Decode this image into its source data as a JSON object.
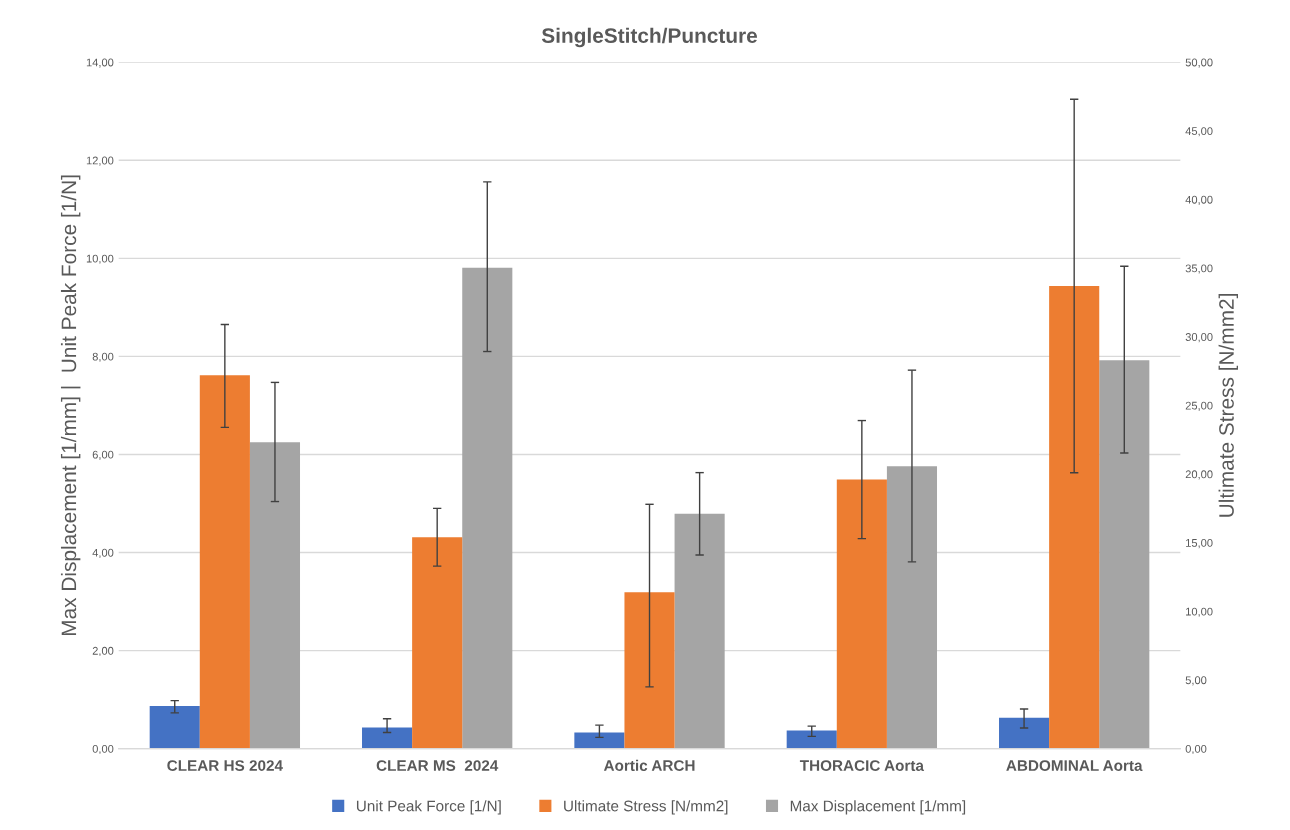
{
  "chart_data": {
    "type": "bar",
    "title": "SingleStitch/Puncture",
    "categories": [
      "CLEAR HS 2024",
      "CLEAR MS  2024",
      "Aortic ARCH",
      "THORACIC Aorta",
      "ABDOMINAL Aorta"
    ],
    "ylabel": "Max Displacement [1/mm] |  Unit Peak Force [1/N]",
    "y2label": "Ultimate Stress [N/mm2]",
    "ylim": [
      0,
      14
    ],
    "yticks": [
      {
        "value": 0,
        "label": "0,00"
      },
      {
        "value": 2,
        "label": "2,00"
      },
      {
        "value": 4,
        "label": "4,00"
      },
      {
        "value": 6,
        "label": "6,00"
      },
      {
        "value": 8,
        "label": "8,00"
      },
      {
        "value": 10,
        "label": "10,00"
      },
      {
        "value": 12,
        "label": "12,00"
      },
      {
        "value": 14,
        "label": "14,00"
      }
    ],
    "y2lim": [
      0,
      50
    ],
    "y2ticks": [
      {
        "value": 0,
        "label": "0,00"
      },
      {
        "value": 5,
        "label": "5,00"
      },
      {
        "value": 10,
        "label": "10,00"
      },
      {
        "value": 15,
        "label": "15,00"
      },
      {
        "value": 20,
        "label": "20,00"
      },
      {
        "value": 25,
        "label": "25,00"
      },
      {
        "value": 30,
        "label": "30,00"
      },
      {
        "value": 35,
        "label": "35,00"
      },
      {
        "value": 40,
        "label": "40,00"
      },
      {
        "value": 45,
        "label": "45,00"
      },
      {
        "value": 50,
        "label": "50,00"
      }
    ],
    "series": [
      {
        "name": "Unit Peak Force [1/N]",
        "color": "#4472c4",
        "values": [
          0.87,
          0.43,
          0.33,
          0.37,
          0.63
        ],
        "errors": [
          [
            0.73,
            0.98
          ],
          [
            0.33,
            0.61
          ],
          [
            0.23,
            0.48
          ],
          [
            0.25,
            0.46
          ],
          [
            0.42,
            0.81
          ]
        ]
      },
      {
        "name": "Ultimate Stress [N/mm2]",
        "color": "#ed7d31",
        "axis": "y2",
        "values": [
          27.2,
          15.4,
          11.4,
          19.6,
          33.7
        ],
        "errors": [
          [
            23.4,
            30.9
          ],
          [
            13.3,
            17.5
          ],
          [
            4.5,
            17.8
          ],
          [
            15.3,
            23.9
          ],
          [
            20.1,
            47.3
          ]
        ]
      },
      {
        "name": "Max Displacement [1/mm]",
        "color": "#a5a5a5",
        "values": [
          6.25,
          9.81,
          4.79,
          5.76,
          7.92
        ],
        "errors": [
          [
            5.04,
            7.47
          ],
          [
            8.1,
            11.56
          ],
          [
            3.95,
            5.63
          ],
          [
            3.81,
            7.72
          ],
          [
            6.03,
            9.84
          ]
        ]
      }
    ],
    "grid": "y",
    "legend": "bottom"
  }
}
